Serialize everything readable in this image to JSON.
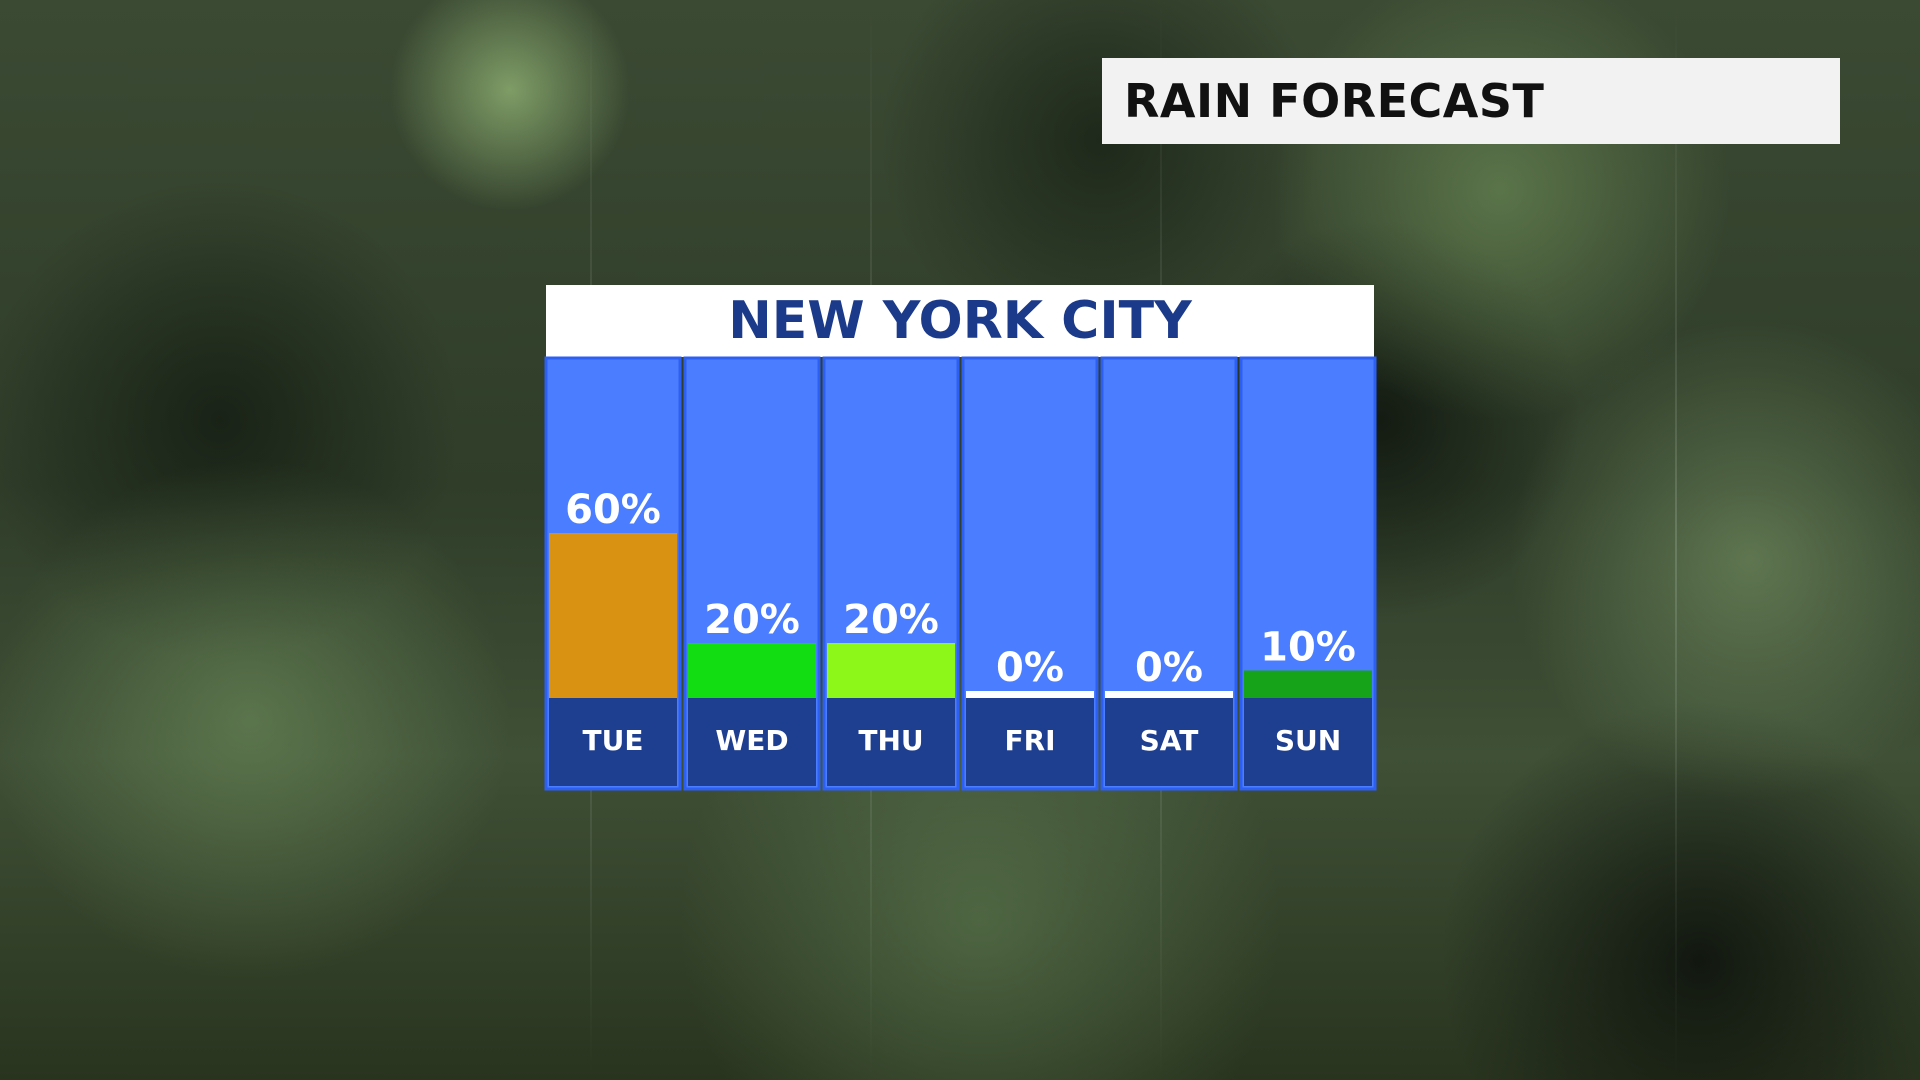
{
  "header": {
    "title": "RAIN FORECAST"
  },
  "panel": {
    "title": "NEW YORK CITY"
  },
  "colors": {
    "column_bg": "#4a7dff",
    "column_border": "#2d5ff2",
    "day_bg": "#1e3f8f",
    "zero_line": "#ffffff"
  },
  "chart_data": {
    "type": "bar",
    "title": "NEW YORK CITY",
    "categories": [
      "TUE",
      "WED",
      "THU",
      "FRI",
      "SAT",
      "SUN"
    ],
    "values": [
      60,
      20,
      20,
      0,
      0,
      10
    ],
    "labels": [
      "60%",
      "20%",
      "20%",
      "0%",
      "0%",
      "10%"
    ],
    "bar_colors": [
      "#d99212",
      "#12dd12",
      "#8cf719",
      "#ffffff",
      "#ffffff",
      "#16a31a"
    ],
    "unit": "%",
    "ylim": [
      0,
      100
    ],
    "grid": false,
    "xlabel": "",
    "ylabel": ""
  }
}
